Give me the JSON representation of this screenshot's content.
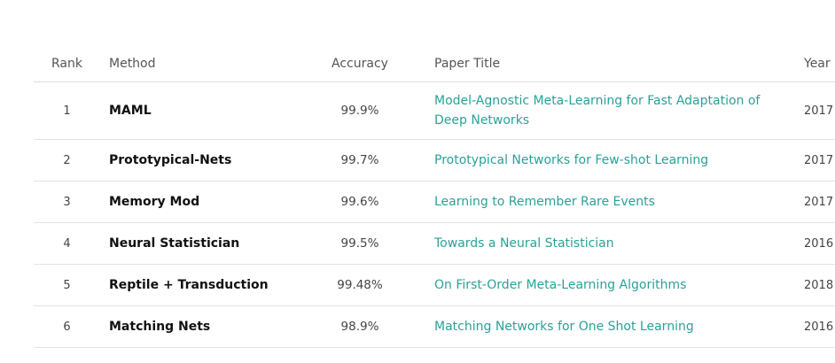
{
  "table": {
    "headers": {
      "rank": "Rank",
      "method": "Method",
      "accuracy": "Accuracy",
      "paper_title": "Paper Title",
      "year": "Year"
    },
    "rows": [
      {
        "rank": "1",
        "method": "MAML",
        "accuracy": "99.9%",
        "paper_title": "Model-Agnostic Meta-Learning for Fast Adaptation of Deep Networks",
        "year": "2017"
      },
      {
        "rank": "2",
        "method": "Prototypical-Nets",
        "accuracy": "99.7%",
        "paper_title": "Prototypical Networks for Few-shot Learning",
        "year": "2017"
      },
      {
        "rank": "3",
        "method": "Memory Mod",
        "accuracy": "99.6%",
        "paper_title": "Learning to Remember Rare Events",
        "year": "2017"
      },
      {
        "rank": "4",
        "method": "Neural Statistician",
        "accuracy": "99.5%",
        "paper_title": "Towards a Neural Statistician",
        "year": "2016"
      },
      {
        "rank": "5",
        "method": "Reptile + Transduction",
        "accuracy": "99.48%",
        "paper_title": "On First-Order Meta-Learning Algorithms",
        "year": "2018"
      },
      {
        "rank": "6",
        "method": "Matching Nets",
        "accuracy": "98.9%",
        "paper_title": "Matching Networks for One Shot Learning",
        "year": "2016"
      }
    ]
  },
  "colors": {
    "link": "#2aa198",
    "method_text": "#111111",
    "divider": "#e3e3e3"
  }
}
